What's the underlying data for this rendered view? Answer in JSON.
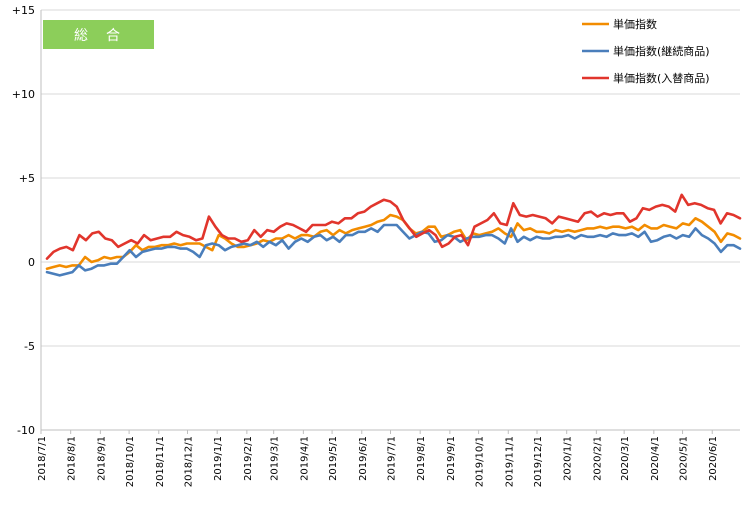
{
  "colors": {
    "badge": "#8cce5a",
    "grid": "#d9d9d9",
    "axis": "#bfbfbf"
  },
  "badge_label": "総　合",
  "chart_data": {
    "type": "line",
    "ylim": [
      -10,
      15
    ],
    "yticks": [
      15,
      10,
      5,
      0,
      -5,
      -10
    ],
    "ytick_labels": [
      "+15",
      "+10",
      "+5",
      "0",
      "-5",
      "-10"
    ],
    "x_start": "2018-07-01",
    "x_end": "2020-06-30",
    "xtick_labels": [
      "2018/7/1",
      "2018/8/1",
      "2018/9/1",
      "2018/10/1",
      "2018/11/1",
      "2018/12/1",
      "2019/1/1",
      "2019/2/1",
      "2019/3/1",
      "2019/4/1",
      "2019/5/1",
      "2019/6/1",
      "2019/7/1",
      "2019/8/1",
      "2019/9/1",
      "2019/10/1",
      "2019/11/1",
      "2019/12/1",
      "2020/1/1",
      "2020/2/1",
      "2020/3/1",
      "2020/4/1",
      "2020/5/1",
      "2020/6/1"
    ],
    "legend_position": "top-right",
    "grid": true,
    "series": [
      {
        "name": "単価指数",
        "color": "#f28c00",
        "values": [
          -0.4,
          -0.3,
          -0.2,
          -0.3,
          -0.2,
          -0.2,
          0.3,
          0.0,
          0.1,
          0.3,
          0.2,
          0.3,
          0.3,
          0.6,
          1.0,
          0.7,
          0.9,
          0.9,
          1.0,
          1.0,
          1.1,
          1.0,
          1.1,
          1.1,
          1.1,
          0.9,
          0.7,
          1.6,
          1.4,
          1.1,
          0.9,
          0.9,
          1.0,
          1.1,
          1.3,
          1.2,
          1.4,
          1.4,
          1.6,
          1.4,
          1.6,
          1.6,
          1.5,
          1.8,
          1.9,
          1.6,
          1.9,
          1.7,
          1.9,
          2.0,
          2.1,
          2.2,
          2.4,
          2.5,
          2.8,
          2.7,
          2.5,
          2.0,
          1.7,
          1.8,
          2.1,
          2.1,
          1.5,
          1.6,
          1.8,
          1.9,
          1.3,
          1.7,
          1.6,
          1.7,
          1.8,
          2.0,
          1.7,
          1.5,
          2.3,
          1.9,
          2.0,
          1.8,
          1.8,
          1.7,
          1.9,
          1.8,
          1.9,
          1.8,
          1.9,
          2.0,
          2.0,
          2.1,
          2.0,
          2.1,
          2.1,
          2.0,
          2.1,
          1.9,
          2.2,
          2.0,
          2.0,
          2.2,
          2.1,
          2.0,
          2.3,
          2.2,
          2.6,
          2.4,
          2.1,
          1.8,
          1.2,
          1.7,
          1.6,
          1.4
        ]
      },
      {
        "name": "単価指数(継続商品)",
        "color": "#4a7ebb",
        "values": [
          -0.6,
          -0.7,
          -0.8,
          -0.7,
          -0.6,
          -0.2,
          -0.5,
          -0.4,
          -0.2,
          -0.2,
          -0.1,
          -0.1,
          0.3,
          0.7,
          0.3,
          0.6,
          0.7,
          0.8,
          0.8,
          0.9,
          0.9,
          0.8,
          0.8,
          0.6,
          0.3,
          1.0,
          1.1,
          1.0,
          0.7,
          0.9,
          1.0,
          1.1,
          1.0,
          1.2,
          0.9,
          1.2,
          1.0,
          1.3,
          0.8,
          1.2,
          1.4,
          1.2,
          1.5,
          1.6,
          1.3,
          1.5,
          1.2,
          1.6,
          1.6,
          1.8,
          1.8,
          2.0,
          1.8,
          2.2,
          2.2,
          2.2,
          1.8,
          1.4,
          1.6,
          1.8,
          1.7,
          1.2,
          1.3,
          1.6,
          1.5,
          1.2,
          1.4,
          1.5,
          1.5,
          1.6,
          1.6,
          1.4,
          1.1,
          2.0,
          1.2,
          1.5,
          1.3,
          1.5,
          1.4,
          1.4,
          1.5,
          1.5,
          1.6,
          1.4,
          1.6,
          1.5,
          1.5,
          1.6,
          1.5,
          1.7,
          1.6,
          1.6,
          1.7,
          1.5,
          1.8,
          1.2,
          1.3,
          1.5,
          1.6,
          1.4,
          1.6,
          1.5,
          2.0,
          1.6,
          1.4,
          1.1,
          0.6,
          1.0,
          1.0,
          0.8
        ]
      },
      {
        "name": "単価指数(入替商品)",
        "color": "#e1352c",
        "values": [
          0.2,
          0.6,
          0.8,
          0.9,
          0.7,
          1.6,
          1.3,
          1.7,
          1.8,
          1.4,
          1.3,
          0.9,
          1.1,
          1.3,
          1.1,
          1.6,
          1.3,
          1.4,
          1.5,
          1.5,
          1.8,
          1.6,
          1.5,
          1.3,
          1.4,
          2.7,
          2.1,
          1.6,
          1.4,
          1.4,
          1.2,
          1.3,
          1.9,
          1.5,
          1.9,
          1.8,
          2.1,
          2.3,
          2.2,
          2.0,
          1.8,
          2.2,
          2.2,
          2.2,
          2.4,
          2.3,
          2.6,
          2.6,
          2.9,
          3.0,
          3.3,
          3.5,
          3.7,
          3.6,
          3.3,
          2.5,
          2.0,
          1.5,
          1.7,
          1.9,
          1.6,
          0.9,
          1.1,
          1.5,
          1.6,
          1.0,
          2.1,
          2.3,
          2.5,
          2.9,
          2.3,
          2.2,
          3.5,
          2.8,
          2.7,
          2.8,
          2.7,
          2.6,
          2.3,
          2.7,
          2.6,
          2.5,
          2.4,
          2.9,
          3.0,
          2.7,
          2.9,
          2.8,
          2.9,
          2.9,
          2.4,
          2.6,
          3.2,
          3.1,
          3.3,
          3.4,
          3.3,
          3.0,
          4.0,
          3.4,
          3.5,
          3.4,
          3.2,
          3.1,
          2.3,
          2.9,
          2.8,
          2.6
        ]
      }
    ]
  }
}
